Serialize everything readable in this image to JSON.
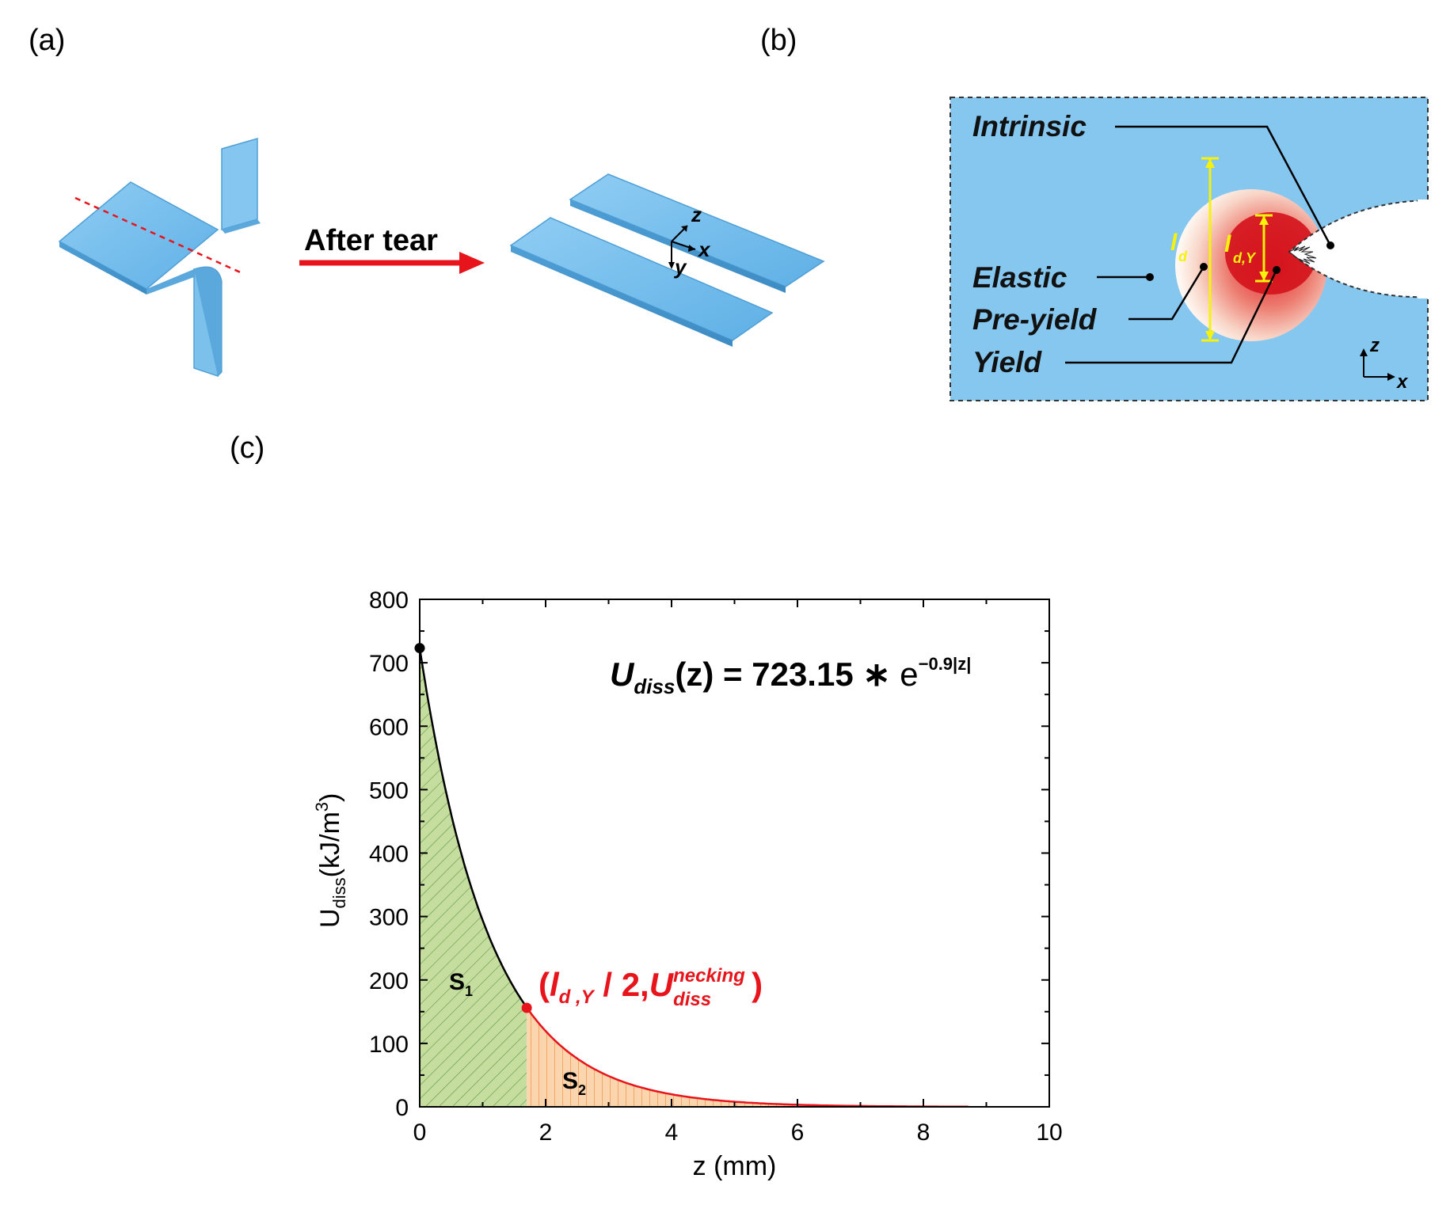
{
  "panels": {
    "a": {
      "label": "(a)",
      "arrow_text": "After tear",
      "axes": {
        "z": "z",
        "x": "x",
        "y": "y"
      }
    },
    "b": {
      "label": "(b)",
      "zones": [
        "Intrinsic",
        "Elastic",
        "Pre-yield",
        "Yield"
      ],
      "dims": {
        "ld_main": "l",
        "ld_sub": "d",
        "ldy_main": "l",
        "ldy_sub": "d,Y"
      },
      "axes": {
        "z": "z",
        "x": "x"
      }
    },
    "c": {
      "label": "(c)"
    }
  },
  "colors": {
    "sheet_blue": "#7dc3ee",
    "panel_bg": "#86c7f0",
    "curve_red": "#e8141c",
    "s1_fill": "#c5dea0",
    "s2_fill": "#fbd5ae",
    "dimension_yellow": "#f6f20c"
  },
  "chart_data": {
    "type": "area",
    "title": "",
    "xlabel": "z (mm)",
    "ylabel_main": "U",
    "ylabel_sub": "diss",
    "ylabel_unit": "(kJ/m",
    "ylabel_sup": "3",
    "ylabel_close": ")",
    "xlim": [
      0,
      10
    ],
    "ylim": [
      0,
      800
    ],
    "xticks": [
      0,
      2,
      4,
      6,
      8,
      10
    ],
    "yticks": [
      0,
      100,
      200,
      300,
      400,
      500,
      600,
      700,
      800
    ],
    "model": {
      "amplitude": 723.15,
      "decay": 0.9
    },
    "equation": {
      "lhs_main": "U",
      "lhs_sub": "diss",
      "lhs_arg": "(z)",
      "rhs": "= 723.15",
      "op": "∗",
      "base": "e",
      "exponent": "−0.9|z|"
    },
    "split_point": {
      "x": 1.7,
      "y": 156
    },
    "split_label": {
      "open": "(",
      "l": "l",
      "sub": "d ,Y",
      "mid": " / 2,",
      "U": "U",
      "sup": "necking",
      "sub2": "diss",
      "close": ")"
    },
    "regions": [
      {
        "name": "S",
        "index": "1",
        "x_range": [
          0,
          1.7
        ]
      },
      {
        "name": "S",
        "index": "2",
        "x_range": [
          1.7,
          10
        ]
      }
    ]
  }
}
